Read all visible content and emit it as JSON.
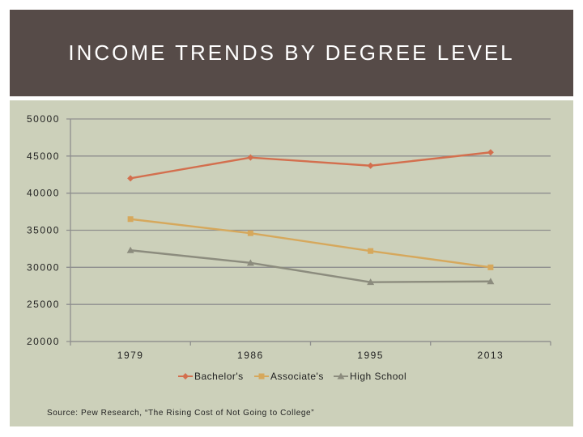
{
  "slide": {
    "title": "INCOME TRENDS BY DEGREE LEVEL",
    "source": "Source: Pew Research, “The Rising Cost of Not Going to College”"
  },
  "colors": {
    "banner": "#564b48",
    "panel": "#ccd0ba",
    "bachelors": "#d36f4e",
    "associates": "#d6a85c",
    "high_school": "#8c8c7e"
  },
  "chart_data": {
    "type": "line",
    "title": "",
    "xlabel": "",
    "ylabel": "",
    "categories": [
      "1979",
      "1986",
      "1995",
      "2013"
    ],
    "ylim": [
      20000,
      50000
    ],
    "yticks": [
      50000,
      45000,
      40000,
      35000,
      30000,
      25000,
      20000
    ],
    "grid": true,
    "legend": "bottom",
    "series": [
      {
        "name": "Bachelor's",
        "marker": "diamond",
        "color": "#d36f4e",
        "values": [
          42000,
          44800,
          43700,
          45500
        ]
      },
      {
        "name": "Associate's",
        "marker": "square",
        "color": "#d6a85c",
        "values": [
          36500,
          34600,
          32200,
          30000
        ]
      },
      {
        "name": "High School",
        "marker": "triangle",
        "color": "#8c8c7e",
        "values": [
          32300,
          30600,
          28000,
          28100
        ]
      }
    ]
  }
}
